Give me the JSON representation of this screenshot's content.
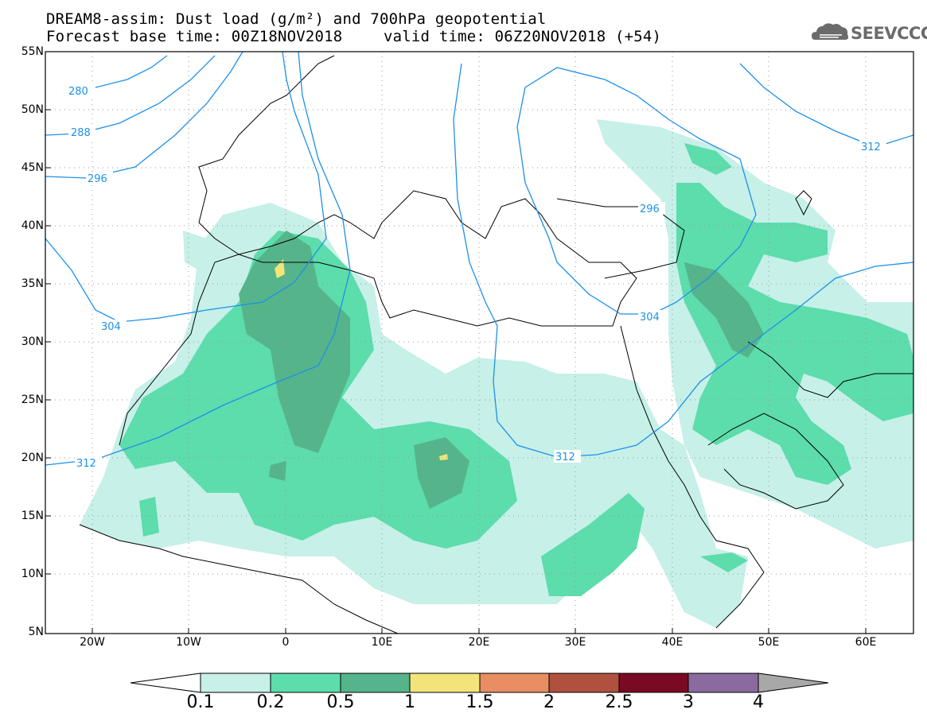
{
  "header": {
    "title_line1": "DREAM8-assim: Dust load (g/m²) and 700hPa geopotential",
    "base_time_label": "Forecast base time: 00Z18NOV2018",
    "valid_time_label": "valid time: 06Z20NOV2018 (+54)",
    "logo_text": "SEEVCCC",
    "logo_icon": "cloud-logo-icon"
  },
  "map": {
    "lat_labels": [
      "55N",
      "50N",
      "45N",
      "40N",
      "35N",
      "30N",
      "25N",
      "20N",
      "15N",
      "10N",
      "5N"
    ],
    "lon_labels": [
      "20W",
      "10W",
      "0",
      "10E",
      "20E",
      "30E",
      "40E",
      "50E",
      "60E"
    ],
    "contour_labels": [
      "280",
      "288",
      "296",
      "304",
      "312",
      "296",
      "304",
      "312",
      "312"
    ]
  },
  "colorbar": {
    "labels": [
      "0.1",
      "0.2",
      "0.5",
      "1",
      "1.5",
      "2",
      "2.5",
      "3",
      "4"
    ],
    "colors": [
      "#c6f0e8",
      "#5ddcac",
      "#55b48a",
      "#f2e47a",
      "#e88e62",
      "#b0503e",
      "#7a0a24",
      "#8b6aa0"
    ],
    "over_color": "#a8a8a8",
    "under_color": "#ffffff"
  }
}
